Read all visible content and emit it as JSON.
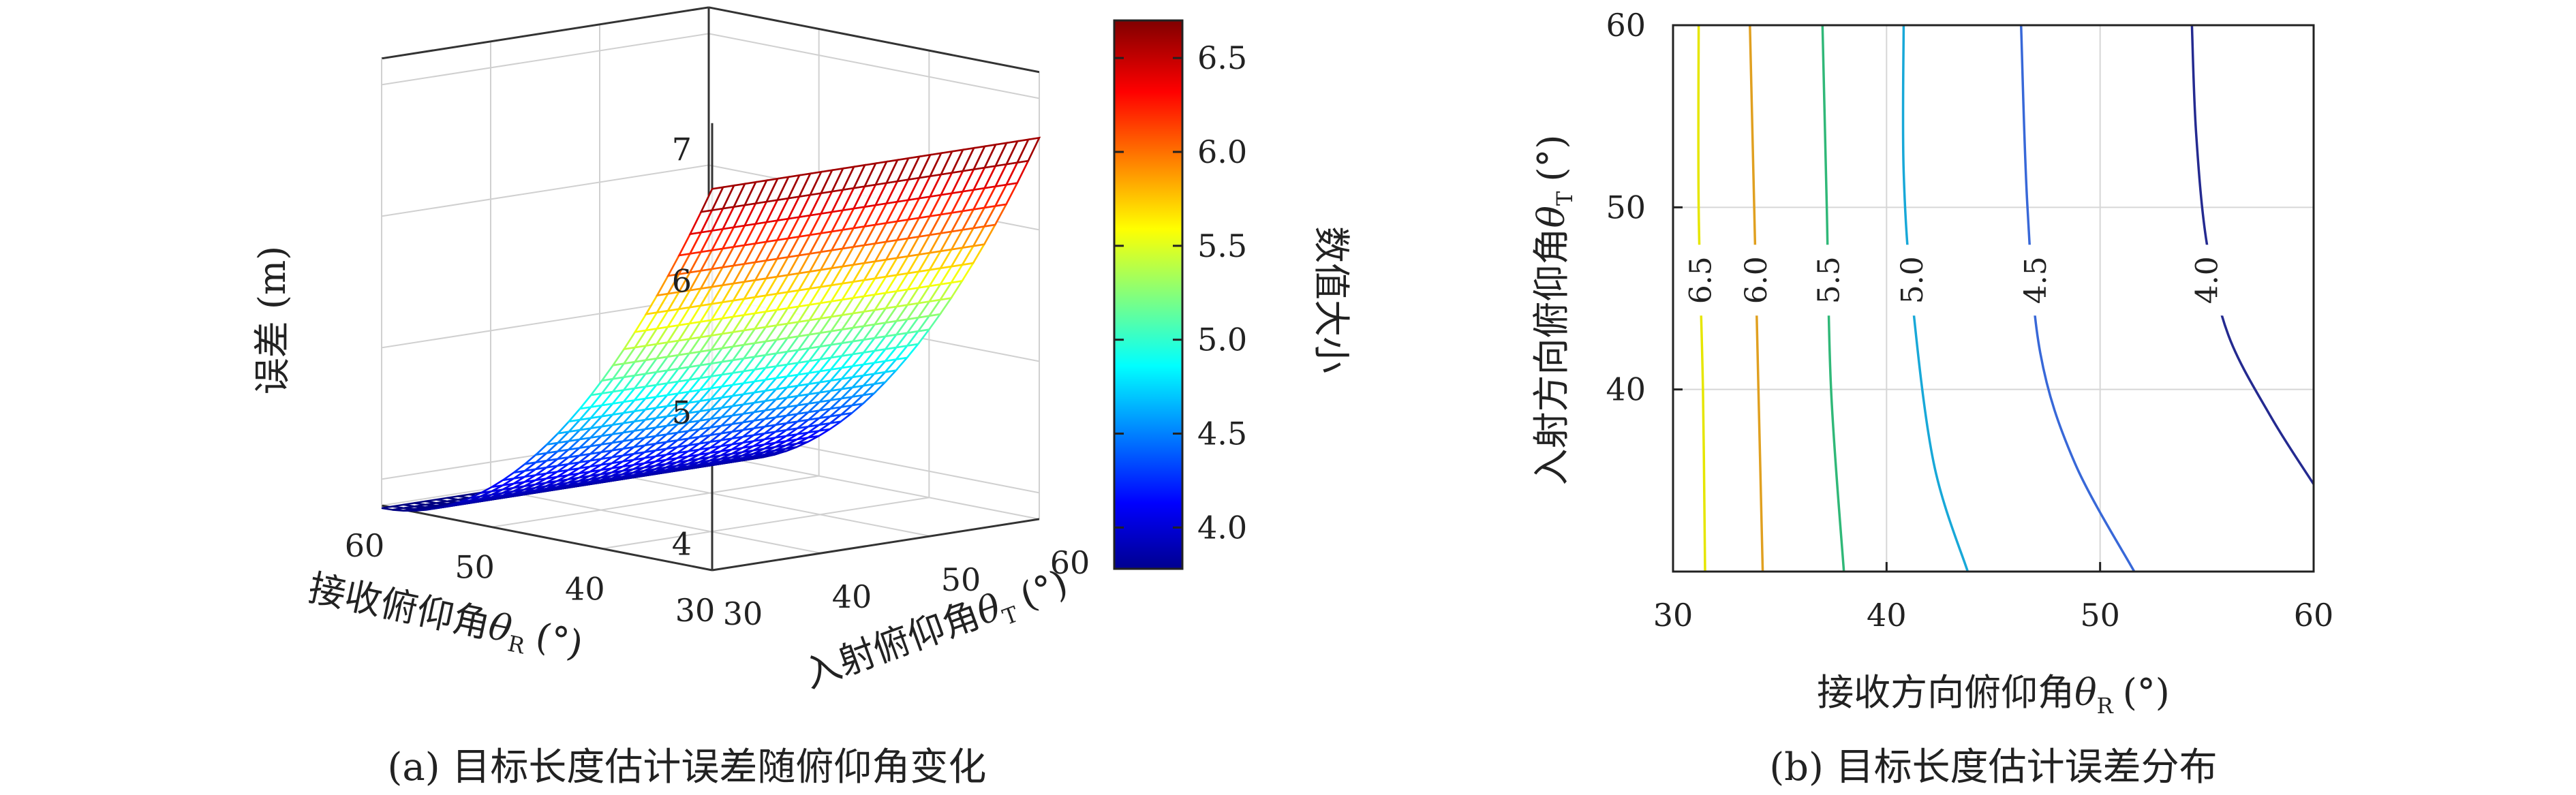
{
  "chart_data": [
    {
      "type": "surface3d",
      "caption": "(a) 目标长度估计误差随俯仰角变化",
      "xlabel": "接收俯仰角θR (°)",
      "xlabel_main": "接收俯仰角",
      "xlabel_sym": "θ",
      "xlabel_sub": "R",
      "xlabel_unit": "(°)",
      "ylabel": "入射俯仰角θT (°)",
      "ylabel_main": "入射俯仰角",
      "ylabel_sym": "θ",
      "ylabel_sub": "T",
      "ylabel_unit": "(°)",
      "zlabel": "误差 (m)",
      "x_range": [
        30,
        60
      ],
      "y_range": [
        30,
        60
      ],
      "zlim": [
        3.8,
        7.2
      ],
      "x_ticks": [
        "30",
        "40",
        "50",
        "60"
      ],
      "y_ticks": [
        "30",
        "40",
        "50",
        "60"
      ],
      "z_ticks": [
        "4",
        "5",
        "6",
        "7"
      ],
      "corner_values": {
        "x30_y30": 6.7,
        "x30_y60": 6.7,
        "x60_y30": 3.78,
        "x60_y60": 3.78
      },
      "colorbar": {
        "label": "数值大小",
        "range": [
          3.78,
          6.7
        ],
        "ticks": [
          "4.0",
          "4.5",
          "5.0",
          "5.5",
          "6.0",
          "6.5"
        ],
        "colormap": "jet"
      },
      "grid": true
    },
    {
      "type": "contour",
      "caption": "(b) 目标长度估计误差分布",
      "xlabel": "接收方向俯仰角θR (°)",
      "xlabel_main": "接收方向俯仰角",
      "xlabel_sym": "θ",
      "xlabel_sub": "R",
      "xlabel_unit": "(°)",
      "ylabel": "入射方向俯仰角θT (°)",
      "ylabel_main": "入射方向俯仰角",
      "ylabel_sym": "θ",
      "ylabel_sub": "T",
      "ylabel_unit": "(°)",
      "xlim": [
        30,
        60
      ],
      "ylim": [
        30,
        60
      ],
      "x_ticks": [
        "30",
        "40",
        "50",
        "60"
      ],
      "y_ticks": [
        "40",
        "50",
        "60"
      ],
      "grid": true,
      "levels": [
        {
          "value": 6.5,
          "label": "6.5",
          "color": "#e6e600",
          "points": [
            [
              31.5,
              30
            ],
            [
              31.4,
              40
            ],
            [
              31.2,
              50
            ],
            [
              31.2,
              60
            ]
          ]
        },
        {
          "value": 6.0,
          "label": "6.0",
          "color": "#e0a020",
          "points": [
            [
              34.2,
              30
            ],
            [
              34.0,
              40
            ],
            [
              33.8,
              50
            ],
            [
              33.6,
              60
            ]
          ]
        },
        {
          "value": 5.5,
          "label": "5.5",
          "color": "#30b878",
          "points": [
            [
              38.0,
              30
            ],
            [
              37.4,
              40
            ],
            [
              37.2,
              50
            ],
            [
              37.0,
              60
            ]
          ]
        },
        {
          "value": 5.0,
          "label": "5.0",
          "color": "#18a8d8",
          "points": [
            [
              43.8,
              30
            ],
            [
              42.2,
              36
            ],
            [
              41.2,
              45
            ],
            [
              40.8,
              52
            ],
            [
              40.8,
              60
            ]
          ]
        },
        {
          "value": 4.5,
          "label": "4.5",
          "color": "#3868d8",
          "points": [
            [
              51.6,
              30
            ],
            [
              48.8,
              36
            ],
            [
              47.2,
              42
            ],
            [
              46.6,
              50
            ],
            [
              46.3,
              60
            ]
          ]
        },
        {
          "value": 4.0,
          "label": "4.0",
          "color": "#242a90",
          "points": [
            [
              60.0,
              34.8
            ],
            [
              58.0,
              38.5
            ],
            [
              56.0,
              43.0
            ],
            [
              55.0,
              48.0
            ],
            [
              54.5,
              54.0
            ],
            [
              54.3,
              60
            ]
          ]
        }
      ]
    }
  ]
}
